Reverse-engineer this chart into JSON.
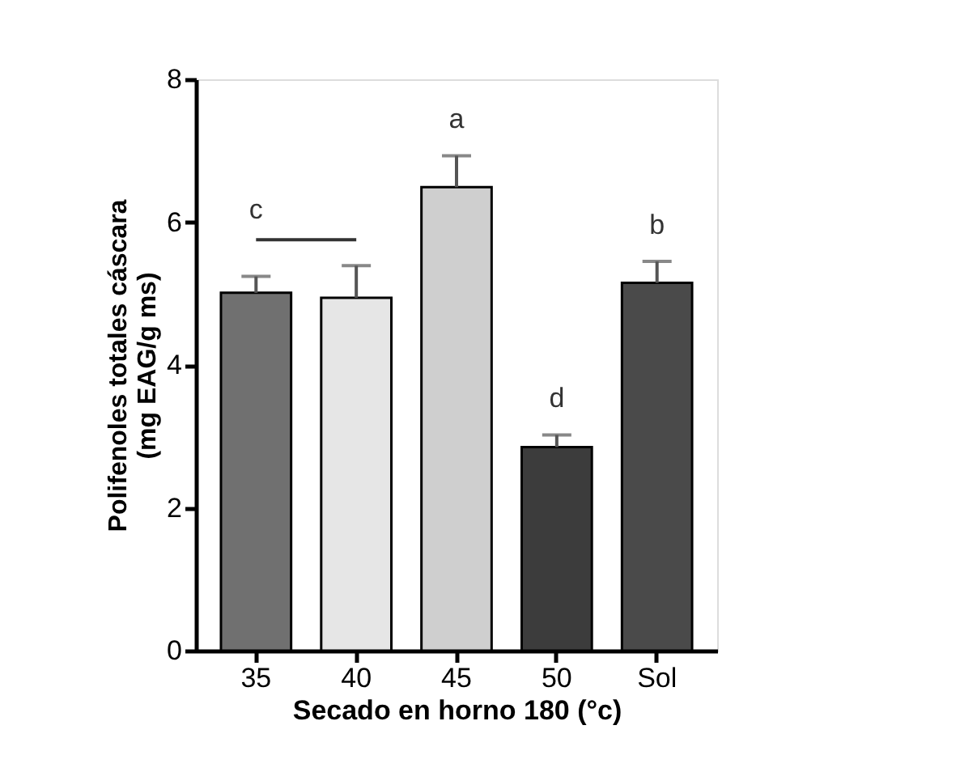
{
  "chart_data": {
    "type": "bar",
    "xlabel": "Secado en horno 180 (°c)",
    "ylabel": "Polifenoles totales cáscara\n(mg EAG/g ms)",
    "categories": [
      "35",
      "40",
      "45",
      "50",
      "Sol"
    ],
    "values": [
      5.01,
      4.94,
      6.49,
      2.85,
      5.15
    ],
    "errors": [
      0.23,
      0.45,
      0.44,
      0.17,
      0.3
    ],
    "colors": [
      "#707070",
      "#e6e6e6",
      "#cfcfcf",
      "#3c3c3c",
      "#4a4a4a"
    ],
    "ylim": [
      0,
      8
    ],
    "yticks": [
      0,
      2,
      4,
      6,
      8
    ],
    "grid": false,
    "annotations": [
      "c",
      "a",
      "d",
      "b"
    ]
  }
}
